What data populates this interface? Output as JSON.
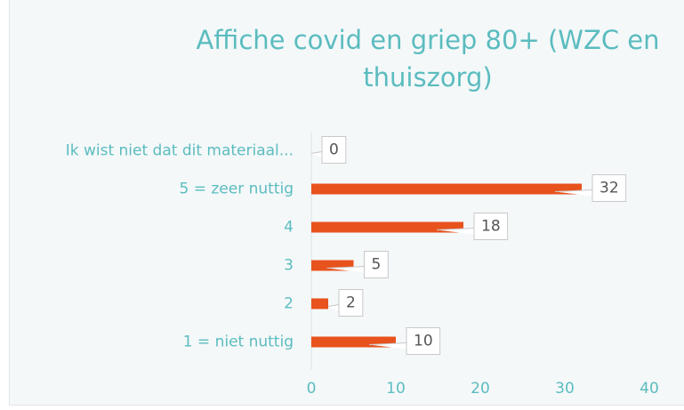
{
  "chart_data": {
    "type": "bar",
    "orientation": "horizontal",
    "title": "Affiche covid en griep 80+ (WZC en thuiszorg)",
    "categories": [
      "Ik wist niet dat dit materiaal...",
      "5 = zeer nuttig",
      "4",
      "3",
      "2",
      "1 = niet nuttig"
    ],
    "values": [
      0,
      32,
      18,
      5,
      2,
      10
    ],
    "color": "#e8521c",
    "xlim": [
      0,
      40
    ],
    "xticks": [
      0,
      10,
      20,
      30,
      40
    ]
  }
}
